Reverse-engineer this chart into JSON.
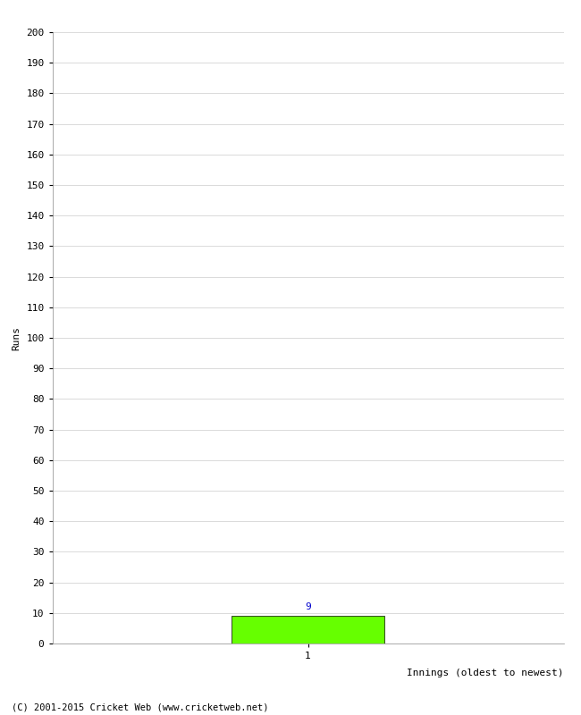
{
  "innings": [
    1
  ],
  "runs": [
    9
  ],
  "bar_color": "#66ff00",
  "bar_edge_color": "#000000",
  "ylabel": "Runs",
  "xlabel": "Innings (oldest to newest)",
  "ylim": [
    0,
    200
  ],
  "yticks": [
    0,
    10,
    20,
    30,
    40,
    50,
    60,
    70,
    80,
    90,
    100,
    110,
    120,
    130,
    140,
    150,
    160,
    170,
    180,
    190,
    200
  ],
  "value_label_color": "#0000cc",
  "value_label_fontsize": 8,
  "axis_label_fontsize": 8,
  "tick_fontsize": 8,
  "copyright_text": "(C) 2001-2015 Cricket Web (www.cricketweb.net)",
  "copyright_fontsize": 7.5,
  "background_color": "#ffffff",
  "grid_color": "#cccccc",
  "xlim": [
    0,
    2
  ],
  "bar_width": 0.6
}
